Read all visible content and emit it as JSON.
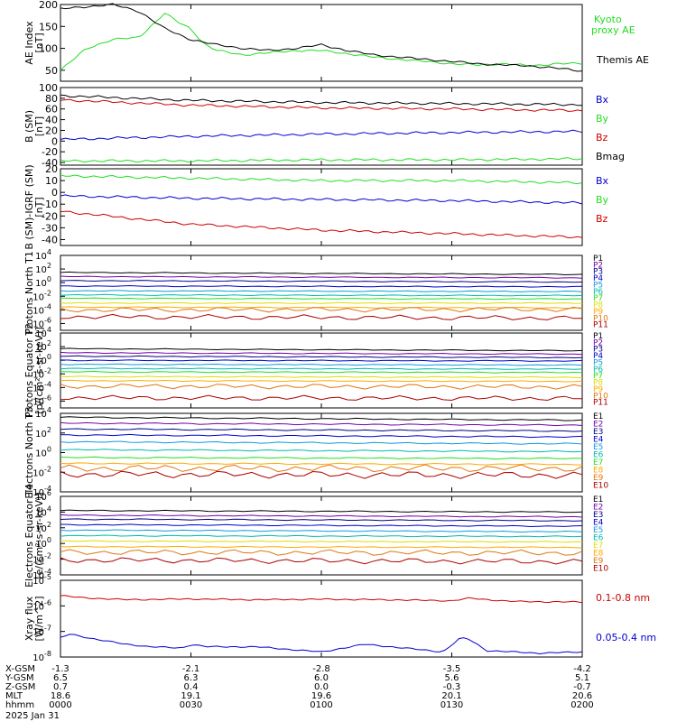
{
  "colors": {
    "black": "#000000",
    "green": "#22dd22",
    "blue": "#0000cc",
    "red": "#cc0000",
    "orange": "#dd7711",
    "purple": "#7700aa",
    "navy": "#000088",
    "cyan": "#1199dd",
    "teal": "#00bbaa",
    "yellow": "#dddd00",
    "gold": "#ffaa00",
    "darkred": "#aa0000"
  },
  "time_axis": {
    "x_gsm": [
      "-1.3",
      "-2.1",
      "-2.8",
      "-3.5",
      "-4.2"
    ],
    "y_gsm": [
      "6.5",
      "6.3",
      "6.0",
      "5.6",
      "5.1"
    ],
    "z_gsm": [
      "0.7",
      "0.4",
      "0.0",
      "-0.3",
      "-0.7"
    ],
    "mlt": [
      "18.6",
      "19.1",
      "19.6",
      "20.1",
      "20.6"
    ],
    "hhmm": [
      "0000",
      "0030",
      "0100",
      "0130",
      "0200"
    ],
    "labels": [
      "X-GSM",
      "Y-GSM",
      "Z-GSM",
      "MLT",
      "hhmm"
    ],
    "date": "2025 Jan 31"
  },
  "chart_data": [
    {
      "type": "line",
      "ylabel": "AE Index [nT]",
      "ylim": [
        25,
        200
      ],
      "yticks": [
        "200",
        "150",
        "100",
        "50"
      ],
      "x_range_minutes": [
        0,
        120
      ],
      "series": [
        {
          "name": "Kyoto proxy AE",
          "color": "green",
          "x": [
            0,
            6,
            12,
            18,
            24,
            27,
            30,
            33,
            36,
            42,
            48,
            54,
            60,
            66,
            72,
            78,
            84,
            90,
            96,
            102,
            108,
            114,
            120
          ],
          "values": [
            50,
            100,
            120,
            125,
            180,
            160,
            145,
            110,
            95,
            85,
            90,
            95,
            95,
            88,
            80,
            75,
            70,
            65,
            62,
            65,
            60,
            65,
            65
          ]
        },
        {
          "name": "Themis AE",
          "color": "black",
          "x": [
            0,
            6,
            12,
            18,
            24,
            30,
            36,
            42,
            48,
            54,
            60,
            66,
            72,
            78,
            84,
            90,
            96,
            102,
            108,
            114,
            120
          ],
          "values": [
            190,
            195,
            200,
            185,
            145,
            120,
            108,
            100,
            95,
            100,
            108,
            95,
            85,
            80,
            75,
            70,
            65,
            62,
            60,
            55,
            48
          ]
        }
      ]
    },
    {
      "type": "line",
      "ylabel": "B (SM) [nT]",
      "ylim": [
        -45,
        100
      ],
      "yticks": [
        "100",
        "80",
        "60",
        "40",
        "20",
        "0",
        "-20",
        "-40"
      ],
      "series": [
        {
          "name": "Bx",
          "color": "blue",
          "x": [
            0,
            30,
            60,
            90,
            120
          ],
          "values": [
            3,
            9,
            13,
            16,
            18
          ]
        },
        {
          "name": "By",
          "color": "green",
          "x": [
            0,
            30,
            60,
            90,
            120
          ],
          "values": [
            -37,
            -37,
            -35,
            -35,
            -33
          ]
        },
        {
          "name": "Bz",
          "color": "red",
          "x": [
            0,
            30,
            60,
            90,
            120
          ],
          "values": [
            77,
            67,
            62,
            60,
            57
          ]
        },
        {
          "name": "Bmag",
          "color": "black",
          "x": [
            0,
            30,
            60,
            90,
            120
          ],
          "values": [
            85,
            76,
            72,
            70,
            68
          ]
        }
      ]
    },
    {
      "type": "line",
      "ylabel": "B (SM)-IGRF (SM) [nT]",
      "ylim": [
        -45,
        20
      ],
      "yticks": [
        "20",
        "10",
        "0",
        "-10",
        "-20",
        "-30",
        "-40"
      ],
      "series": [
        {
          "name": "Bx",
          "color": "blue",
          "x": [
            0,
            30,
            60,
            90,
            120
          ],
          "values": [
            -3,
            -5,
            -6,
            -7,
            -9
          ]
        },
        {
          "name": "By",
          "color": "green",
          "x": [
            0,
            30,
            60,
            90,
            120
          ],
          "values": [
            14,
            12,
            10,
            10,
            8
          ]
        },
        {
          "name": "Bz",
          "color": "red",
          "x": [
            0,
            30,
            60,
            90,
            120
          ],
          "values": [
            -16,
            -27,
            -32,
            -35,
            -38
          ]
        }
      ]
    },
    {
      "type": "line",
      "ylabel": "Protons North T1",
      "y_log": true,
      "ylim_exp": [
        -7,
        4
      ],
      "yticks_exp": [
        4,
        2,
        0,
        -2,
        -4,
        -6
      ],
      "channels": [
        {
          "name": "P1",
          "color": "black",
          "log_values": [
            1.5,
            1.2
          ]
        },
        {
          "name": "P2",
          "color": "purple",
          "log_values": [
            0.9,
            0.7
          ]
        },
        {
          "name": "P3",
          "color": "navy",
          "log_values": [
            0.3,
            0.1
          ]
        },
        {
          "name": "P4",
          "color": "blue",
          "log_values": [
            -0.5,
            -0.6
          ]
        },
        {
          "name": "P5",
          "color": "cyan",
          "log_values": [
            -1.2,
            -1.3
          ]
        },
        {
          "name": "P6",
          "color": "teal",
          "log_values": [
            -1.8,
            -1.9
          ]
        },
        {
          "name": "P7",
          "color": "green",
          "log_values": [
            -2.3,
            -2.4
          ]
        },
        {
          "name": "P8",
          "color": "yellow",
          "log_values": [
            -3.0,
            -3.0
          ]
        },
        {
          "name": "P9",
          "color": "gold",
          "log_values": [
            -3.6,
            -3.7
          ]
        },
        {
          "name": "P10",
          "color": "orange",
          "log_values": [
            -4.0,
            -3.9
          ]
        },
        {
          "name": "P11",
          "color": "darkred",
          "log_values": [
            -5.0,
            -5.2
          ]
        }
      ]
    },
    {
      "type": "line",
      "ylabel": "Protons Equator T2 [p/(cm²-s-sr-keV)]",
      "y_log": true,
      "ylim_exp": [
        -7,
        4
      ],
      "yticks_exp": [
        4,
        2,
        0,
        -2,
        -4,
        -6
      ],
      "channels": [
        {
          "name": "P1",
          "color": "black",
          "log_values": [
            1.7,
            1.4
          ]
        },
        {
          "name": "P2",
          "color": "purple",
          "log_values": [
            1.1,
            0.9
          ]
        },
        {
          "name": "P3",
          "color": "navy",
          "log_values": [
            0.6,
            0.4
          ]
        },
        {
          "name": "P4",
          "color": "blue",
          "log_values": [
            0.0,
            -0.1
          ]
        },
        {
          "name": "P5",
          "color": "cyan",
          "log_values": [
            -0.6,
            -0.7
          ]
        },
        {
          "name": "P6",
          "color": "teal",
          "log_values": [
            -1.2,
            -1.3
          ]
        },
        {
          "name": "P7",
          "color": "green",
          "log_values": [
            -1.7,
            -1.8
          ]
        },
        {
          "name": "P8",
          "color": "yellow",
          "log_values": [
            -2.4,
            -2.5
          ]
        },
        {
          "name": "P9",
          "color": "gold",
          "log_values": [
            -3.0,
            -3.1
          ]
        },
        {
          "name": "P10",
          "color": "orange",
          "log_values": [
            -3.8,
            -3.9
          ]
        },
        {
          "name": "P11",
          "color": "darkred",
          "log_values": [
            -5.5,
            -5.6
          ]
        }
      ]
    },
    {
      "type": "line",
      "ylabel": "Electrons North T3",
      "y_log": true,
      "ylim_exp": [
        -4,
        4
      ],
      "yticks_exp": [
        4,
        2,
        0,
        -2,
        -4
      ],
      "channels": [
        {
          "name": "E1",
          "color": "black",
          "log_values": [
            3.6,
            3.3
          ]
        },
        {
          "name": "E2",
          "color": "purple",
          "log_values": [
            3.0,
            2.8
          ]
        },
        {
          "name": "E3",
          "color": "navy",
          "log_values": [
            2.4,
            2.2
          ]
        },
        {
          "name": "E4",
          "color": "blue",
          "log_values": [
            1.8,
            1.6
          ]
        },
        {
          "name": "E5",
          "color": "cyan",
          "log_values": [
            1.1,
            0.9
          ]
        },
        {
          "name": "E6",
          "color": "teal",
          "log_values": [
            0.3,
            0.1
          ]
        },
        {
          "name": "E7",
          "color": "green",
          "log_values": [
            -0.5,
            -0.6
          ]
        },
        {
          "name": "E8",
          "color": "gold",
          "log_values": [
            -1.1,
            -1.2
          ]
        },
        {
          "name": "E9",
          "color": "orange",
          "log_values": [
            -1.6,
            -1.6
          ]
        },
        {
          "name": "E10",
          "color": "darkred",
          "log_values": [
            -2.2,
            -2.3
          ]
        }
      ]
    },
    {
      "type": "line",
      "ylabel": "Electrons Equator T4 [e/(cm²-s-sr-keV)]",
      "y_log": true,
      "ylim_exp": [
        -4,
        6
      ],
      "yticks_exp": [
        6,
        4,
        2,
        0,
        -2,
        -4
      ],
      "channels": [
        {
          "name": "E1",
          "color": "black",
          "log_values": [
            4.2,
            4.0
          ]
        },
        {
          "name": "E2",
          "color": "purple",
          "log_values": [
            3.6,
            3.4
          ]
        },
        {
          "name": "E3",
          "color": "navy",
          "log_values": [
            3.1,
            2.9
          ]
        },
        {
          "name": "E4",
          "color": "blue",
          "log_values": [
            2.4,
            2.2
          ]
        },
        {
          "name": "E5",
          "color": "cyan",
          "log_values": [
            1.7,
            1.5
          ]
        },
        {
          "name": "E6",
          "color": "teal",
          "log_values": [
            1.0,
            0.9
          ]
        },
        {
          "name": "E7",
          "color": "yellow",
          "log_values": [
            0.3,
            0.2
          ]
        },
        {
          "name": "E8",
          "color": "gold",
          "log_values": [
            -0.4,
            -0.5
          ]
        },
        {
          "name": "E9",
          "color": "orange",
          "log_values": [
            -1.1,
            -1.2
          ]
        },
        {
          "name": "E10",
          "color": "darkred",
          "log_values": [
            -2.1,
            -2.3
          ]
        }
      ]
    },
    {
      "type": "line",
      "ylabel": "Xray flux [W/m^2]",
      "y_log": true,
      "ylim_exp": [
        -8,
        -5
      ],
      "yticks_exp": [
        -5,
        -6,
        -7,
        -8
      ],
      "series": [
        {
          "name": "0.1-0.8 nm",
          "color": "red",
          "x": [
            0,
            5,
            15,
            30,
            45,
            60,
            75,
            90,
            94,
            100,
            105,
            120
          ],
          "log_values": [
            -5.6,
            -5.68,
            -5.76,
            -5.73,
            -5.76,
            -5.74,
            -5.76,
            -5.8,
            -5.7,
            -5.78,
            -5.83,
            -5.85
          ]
        },
        {
          "name": "0.05-0.4 nm",
          "color": "blue",
          "x": [
            0,
            2,
            8,
            15,
            21,
            28,
            30,
            34,
            45,
            60,
            70,
            88,
            92,
            94,
            98,
            110,
            120
          ],
          "log_values": [
            -7.25,
            -7.1,
            -7.3,
            -7.5,
            -7.6,
            -7.65,
            -7.5,
            -7.6,
            -7.6,
            -7.8,
            -7.5,
            -7.8,
            -7.25,
            -7.3,
            -7.75,
            -7.85,
            -7.8
          ]
        }
      ]
    }
  ]
}
